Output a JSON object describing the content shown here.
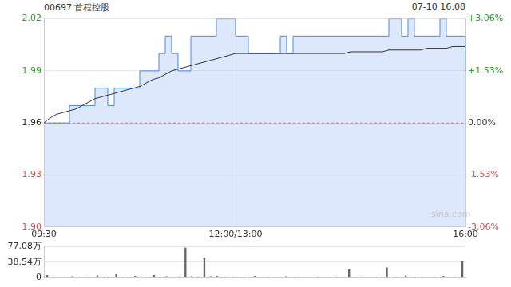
{
  "chart_data": [
    {
      "type": "line",
      "title": "00697 首程控股",
      "subtitle": "07-10 16:08",
      "annotations": [
        "sina.com"
      ],
      "categories": [
        "09:30",
        null,
        null,
        null,
        null,
        null,
        null,
        null,
        null,
        null,
        null,
        null,
        null,
        null,
        null,
        null,
        null,
        null,
        null,
        null,
        null,
        null,
        null,
        null,
        null,
        null,
        null,
        null,
        null,
        null,
        "12:00/13:00",
        null,
        null,
        null,
        null,
        null,
        null,
        null,
        null,
        null,
        null,
        null,
        null,
        null,
        null,
        null,
        null,
        null,
        null,
        null,
        null,
        null,
        null,
        null,
        null,
        null,
        null,
        null,
        null,
        null,
        null,
        null,
        null,
        null,
        null,
        null,
        "16:00"
      ],
      "series": [
        {
          "type": "area",
          "line_style": "stepped",
          "color": "#4a86e8",
          "values": [
            1.96,
            1.96,
            1.96,
            1.96,
            1.97,
            1.97,
            1.97,
            1.97,
            1.98,
            1.98,
            1.97,
            1.98,
            1.98,
            1.98,
            1.98,
            1.99,
            1.99,
            1.99,
            2.0,
            2.01,
            2.0,
            1.99,
            1.99,
            2.01,
            2.01,
            2.01,
            2.01,
            2.02,
            2.02,
            2.02,
            2.01,
            2.01,
            2.0,
            2.0,
            2.0,
            2.0,
            2.0,
            2.01,
            2.0,
            2.01,
            2.01,
            2.01,
            2.01,
            2.01,
            2.01,
            2.01,
            2.01,
            2.01,
            2.01,
            2.01,
            2.01,
            2.01,
            2.01,
            2.01,
            2.02,
            2.02,
            2.01,
            2.02,
            2.01,
            2.01,
            2.01,
            2.01,
            2.02,
            2.01,
            2.01,
            2.01,
            1.99
          ]
        },
        {
          "type": "line",
          "line_style": "solid",
          "color": "#333333",
          "values": [
            1.96,
            1.963,
            1.965,
            1.966,
            1.967,
            1.968,
            1.97,
            1.972,
            1.974,
            1.975,
            1.976,
            1.977,
            1.978,
            1.979,
            1.98,
            1.981,
            1.983,
            1.985,
            1.986,
            1.988,
            1.99,
            1.991,
            1.992,
            1.993,
            1.994,
            1.995,
            1.996,
            1.997,
            1.998,
            1.999,
            2,
            2,
            2,
            2,
            2,
            2,
            2,
            2,
            2,
            2,
            2,
            2,
            2,
            2,
            2,
            2,
            2,
            2,
            2.001,
            2.001,
            2.001,
            2.001,
            2.001,
            2.001,
            2.002,
            2.002,
            2.002,
            2.002,
            2.002,
            2.002,
            2.003,
            2.003,
            2.003,
            2.003,
            2.004,
            2.004,
            2.004
          ]
        },
        {
          "type": "line",
          "line_style": "dashed",
          "color": "#e06666",
          "values": [
            1.96,
            1.96,
            1.96,
            1.96,
            1.96,
            1.96,
            1.96,
            1.96,
            1.96,
            1.96,
            1.96,
            1.96,
            1.96,
            1.96,
            1.96,
            1.96,
            1.96,
            1.96,
            1.96,
            1.96,
            1.96,
            1.96,
            1.96,
            1.96,
            1.96,
            1.96,
            1.96,
            1.96,
            1.96,
            1.96,
            1.96,
            1.96,
            1.96,
            1.96,
            1.96,
            1.96,
            1.96,
            1.96,
            1.96,
            1.96,
            1.96,
            1.96,
            1.96,
            1.96,
            1.96,
            1.96,
            1.96,
            1.96,
            1.96,
            1.96,
            1.96,
            1.96,
            1.96,
            1.96,
            1.96,
            1.96,
            1.96,
            1.96,
            1.96,
            1.96,
            1.96,
            1.96,
            1.96,
            1.96,
            1.96,
            1.96,
            1.96
          ]
        }
      ],
      "ylim": [
        1.9,
        2.02
      ],
      "yticks": [
        {
          "value": 1.9,
          "label": "1.90"
        },
        1.93,
        1.96,
        1.99,
        2.02
      ],
      "y2lim": [
        -3.06,
        3.06
      ],
      "y2ticks": [
        {
          "value": -3.06,
          "label": "-3.06%"
        },
        {
          "value": -1.53,
          "label": "-1.53%"
        },
        {
          "value": 0,
          "label": "0.00%"
        },
        {
          "value": 1.53,
          "label": "+1.53%"
        },
        {
          "value": 3.06,
          "label": "+3.06%"
        }
      ],
      "grid": true
    },
    {
      "type": "bar",
      "color": "#666666",
      "tick_labels": "y",
      "categories": [
        "09:30",
        null,
        null,
        null,
        null,
        null,
        null,
        null,
        null,
        null,
        null,
        null,
        null,
        null,
        null,
        null,
        null,
        null,
        null,
        null,
        null,
        null,
        null,
        null,
        null,
        null,
        null,
        null,
        null,
        null,
        "12:00/13:00",
        null,
        null,
        null,
        null,
        null,
        null,
        null,
        null,
        null,
        null,
        null,
        null,
        null,
        null,
        null,
        null,
        null,
        null,
        null,
        null,
        null,
        null,
        null,
        null,
        null,
        null,
        null,
        null,
        null,
        null,
        null,
        null,
        null,
        null,
        null,
        "16:00"
      ],
      "values": [
        6,
        2,
        1,
        1,
        3,
        1,
        2,
        1,
        5,
        2,
        1,
        8,
        2,
        1,
        4,
        2,
        1,
        6,
        2,
        3,
        1,
        2,
        75,
        3,
        2,
        50,
        3,
        4,
        1,
        2,
        2,
        1,
        2,
        4,
        1,
        1,
        2,
        1,
        3,
        1,
        2,
        1,
        1,
        2,
        1,
        1,
        2,
        1,
        20,
        1,
        2,
        1,
        1,
        2,
        25,
        2,
        1,
        5,
        1,
        2,
        1,
        1,
        2,
        4,
        1,
        2,
        40
      ],
      "ylim": [
        0,
        77.08
      ],
      "yticks": [
        0,
        {
          "value": 38.54,
          "label": "38.54万"
        },
        {
          "value": 77.08,
          "label": "77.08万"
        }
      ],
      "grid": true
    }
  ]
}
